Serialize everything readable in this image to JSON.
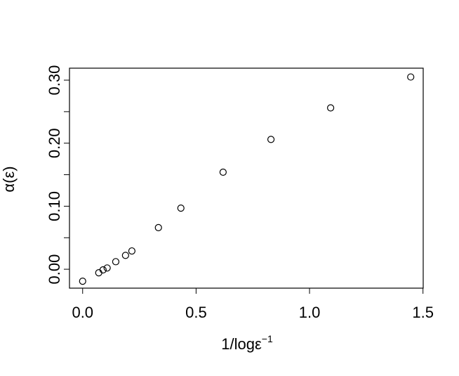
{
  "chart_data": {
    "type": "scatter",
    "x_label": "1/logε",
    "x_label_superscript": "−1",
    "y_label": "α(ε)",
    "x": [
      0,
      0.071,
      0.09,
      0.108,
      0.146,
      0.189,
      0.217,
      0.334,
      0.433,
      0.619,
      0.83,
      1.093,
      1.446
    ],
    "values": [
      -0.019,
      -0.0056,
      -0.001,
      0.002,
      0.012,
      0.022,
      0.029,
      0.066,
      0.097,
      0.154,
      0.206,
      0.256,
      0.305
    ],
    "color": "#000000",
    "xlim": [
      -0.058,
      1.501
    ],
    "ylim": [
      -0.03,
      0.319
    ],
    "xticks": [
      {
        "value": 0,
        "label": "0.0"
      },
      0.5,
      {
        "value": 1,
        "label": "1.0"
      },
      1.5
    ],
    "yticks": [
      {
        "value": 0,
        "label": "0.00"
      },
      {
        "value": 0.1,
        "label": "0.10"
      },
      {
        "value": 0.2,
        "label": "0.20"
      },
      {
        "value": 0.3,
        "label": "0.30"
      }
    ],
    "yminor_ticks": [
      0.05,
      0.15,
      0.25
    ]
  }
}
